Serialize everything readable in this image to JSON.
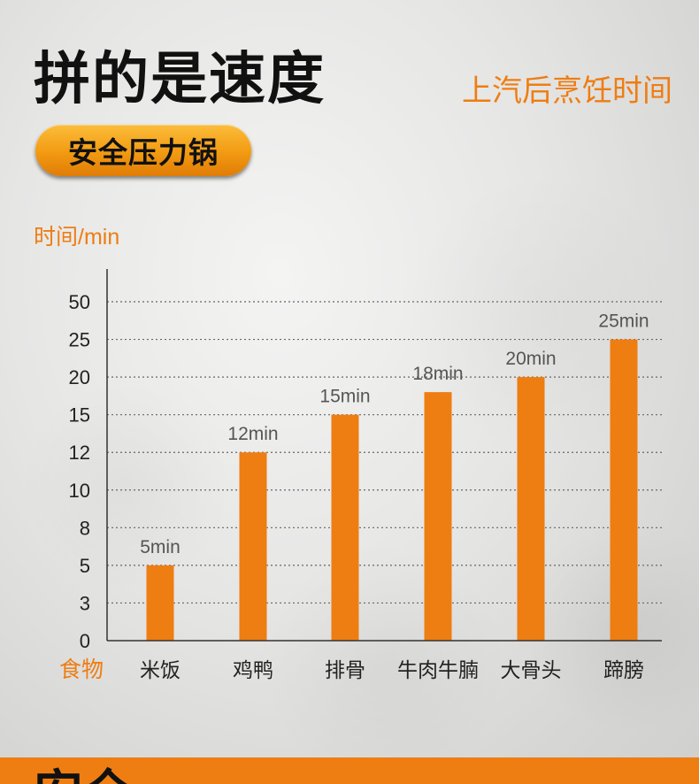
{
  "header": {
    "title": "拼的是速度",
    "subtitle": "上汽后烹饪时间",
    "badge": "安全压力锅"
  },
  "chart_data": {
    "type": "bar",
    "ylabel": "时间/min",
    "xlabel": "食物",
    "yticks": [
      "0",
      "3",
      "5",
      "8",
      "10",
      "12",
      "15",
      "20",
      "25",
      "50"
    ],
    "categories": [
      "米饭",
      "鸡鸭",
      "排骨",
      "牛肉牛腩",
      "大骨头",
      "蹄膀"
    ],
    "values": [
      5,
      12,
      15,
      18,
      20,
      25
    ],
    "data_labels": [
      "5min",
      "12min",
      "15min",
      "18min",
      "20min",
      "25min"
    ],
    "grid": true,
    "bar_color": "#ee7d12"
  },
  "footer": {
    "partial_text": "安全"
  },
  "colors": {
    "accent": "#ee7d12",
    "title": "#111111"
  }
}
